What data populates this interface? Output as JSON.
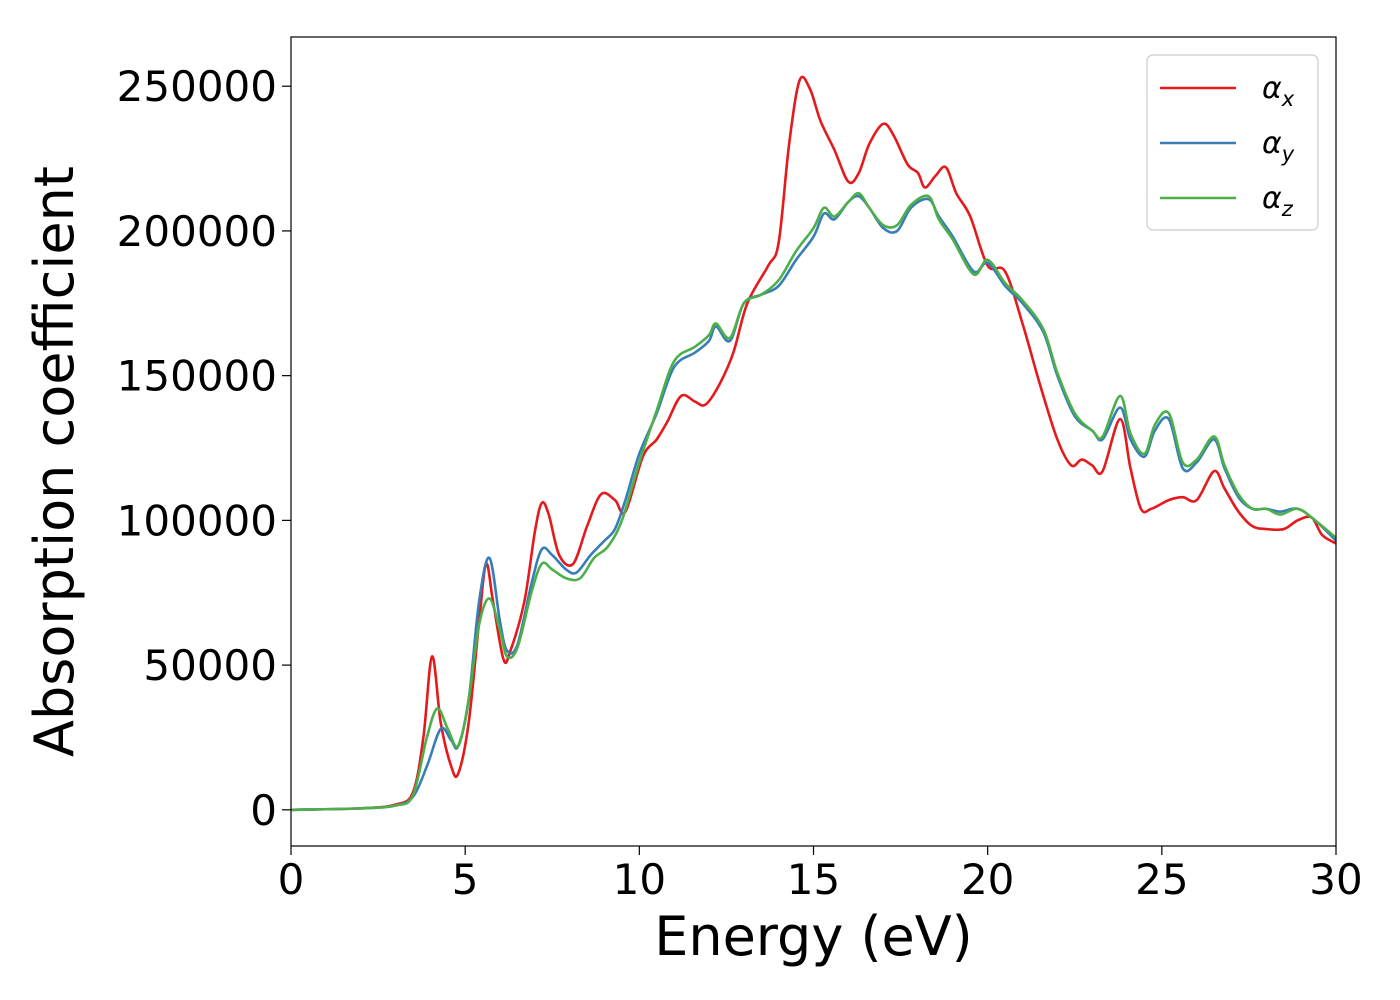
{
  "chart_data": {
    "type": "line",
    "title": "",
    "xlabel": "Energy (eV)",
    "ylabel": "Absorption coefficient",
    "xlim": [
      0,
      30
    ],
    "ylim": [
      -12500,
      267000
    ],
    "xticks": [
      0,
      5,
      10,
      15,
      20,
      25,
      30
    ],
    "xtick_labels": [
      "0",
      "5",
      "10",
      "15",
      "20",
      "25",
      "30"
    ],
    "yticks": [
      0,
      50000,
      100000,
      150000,
      200000,
      250000
    ],
    "ytick_labels": [
      "0",
      "50000",
      "100000",
      "150000",
      "200000",
      "250000"
    ],
    "grid": false,
    "legend_position": "top-right",
    "series": [
      {
        "name": "αx",
        "legend_symbol": "α",
        "legend_subscript": "x",
        "color": "#e41a1c",
        "points": [
          [
            0,
            0
          ],
          [
            2,
            500
          ],
          [
            3,
            1800
          ],
          [
            3.5,
            6000
          ],
          [
            3.8,
            25000
          ],
          [
            4.05,
            53000
          ],
          [
            4.3,
            30000
          ],
          [
            4.6,
            15000
          ],
          [
            4.8,
            12500
          ],
          [
            5.1,
            30000
          ],
          [
            5.4,
            65000
          ],
          [
            5.6,
            85000
          ],
          [
            5.8,
            72000
          ],
          [
            6.1,
            52000
          ],
          [
            6.3,
            55000
          ],
          [
            6.7,
            72000
          ],
          [
            7.0,
            96000
          ],
          [
            7.2,
            106000
          ],
          [
            7.4,
            102000
          ],
          [
            7.7,
            88000
          ],
          [
            8.1,
            85000
          ],
          [
            8.5,
            98000
          ],
          [
            8.9,
            109000
          ],
          [
            9.3,
            107000
          ],
          [
            9.6,
            103000
          ],
          [
            10.1,
            122000
          ],
          [
            10.5,
            128000
          ],
          [
            10.8,
            134000
          ],
          [
            11.2,
            143000
          ],
          [
            11.6,
            141000
          ],
          [
            11.9,
            140000
          ],
          [
            12.3,
            147000
          ],
          [
            12.7,
            158000
          ],
          [
            13.1,
            175000
          ],
          [
            13.7,
            188000
          ],
          [
            14.0,
            196000
          ],
          [
            14.3,
            230000
          ],
          [
            14.6,
            252000
          ],
          [
            14.9,
            249000
          ],
          [
            15.2,
            238000
          ],
          [
            15.6,
            228000
          ],
          [
            16.0,
            217000
          ],
          [
            16.3,
            220000
          ],
          [
            16.6,
            230000
          ],
          [
            17.0,
            237000
          ],
          [
            17.3,
            233000
          ],
          [
            17.7,
            223000
          ],
          [
            18.0,
            220000
          ],
          [
            18.2,
            215000
          ],
          [
            18.5,
            219000
          ],
          [
            18.8,
            222000
          ],
          [
            19.1,
            213000
          ],
          [
            19.5,
            205000
          ],
          [
            20.0,
            188000
          ],
          [
            20.5,
            186000
          ],
          [
            21.0,
            168000
          ],
          [
            21.5,
            147000
          ],
          [
            22.0,
            128000
          ],
          [
            22.4,
            119000
          ],
          [
            22.7,
            121000
          ],
          [
            23.0,
            119000
          ],
          [
            23.3,
            117000
          ],
          [
            23.8,
            135000
          ],
          [
            24.1,
            118000
          ],
          [
            24.4,
            104000
          ],
          [
            24.7,
            104000
          ],
          [
            25.2,
            107000
          ],
          [
            25.6,
            108000
          ],
          [
            26.0,
            107000
          ],
          [
            26.5,
            117000
          ],
          [
            26.8,
            111000
          ],
          [
            27.2,
            103000
          ],
          [
            27.6,
            98000
          ],
          [
            28.0,
            97000
          ],
          [
            28.5,
            97000
          ],
          [
            28.9,
            100000
          ],
          [
            29.3,
            101000
          ],
          [
            29.6,
            95000
          ],
          [
            30.0,
            92000
          ]
        ]
      },
      {
        "name": "αy",
        "legend_symbol": "α",
        "legend_subscript": "y",
        "color": "#377eb8",
        "points": [
          [
            0,
            0
          ],
          [
            2,
            500
          ],
          [
            3,
            1500
          ],
          [
            3.5,
            4500
          ],
          [
            3.9,
            15000
          ],
          [
            4.3,
            28000
          ],
          [
            4.6,
            24000
          ],
          [
            4.8,
            22000
          ],
          [
            5.1,
            38000
          ],
          [
            5.4,
            72000
          ],
          [
            5.7,
            87000
          ],
          [
            6.0,
            65000
          ],
          [
            6.2,
            55000
          ],
          [
            6.5,
            57000
          ],
          [
            6.9,
            78000
          ],
          [
            7.2,
            90000
          ],
          [
            7.5,
            88000
          ],
          [
            7.9,
            83000
          ],
          [
            8.2,
            82000
          ],
          [
            8.6,
            88000
          ],
          [
            9.0,
            93000
          ],
          [
            9.3,
            97000
          ],
          [
            9.6,
            107000
          ],
          [
            10.0,
            123000
          ],
          [
            10.5,
            137000
          ],
          [
            11.0,
            153000
          ],
          [
            11.6,
            158000
          ],
          [
            12.0,
            162000
          ],
          [
            12.2,
            167000
          ],
          [
            12.6,
            162000
          ],
          [
            13.0,
            175000
          ],
          [
            13.5,
            178000
          ],
          [
            14.0,
            181000
          ],
          [
            14.5,
            190000
          ],
          [
            15.0,
            198000
          ],
          [
            15.3,
            206000
          ],
          [
            15.6,
            204000
          ],
          [
            16.0,
            210000
          ],
          [
            16.3,
            212000
          ],
          [
            16.6,
            208000
          ],
          [
            17.0,
            201000
          ],
          [
            17.4,
            200000
          ],
          [
            17.8,
            208000
          ],
          [
            18.3,
            211000
          ],
          [
            18.6,
            205000
          ],
          [
            19.0,
            198000
          ],
          [
            19.6,
            186000
          ],
          [
            20.0,
            189000
          ],
          [
            20.5,
            181000
          ],
          [
            21.0,
            175000
          ],
          [
            21.6,
            165000
          ],
          [
            22.0,
            150000
          ],
          [
            22.5,
            136000
          ],
          [
            23.0,
            131000
          ],
          [
            23.3,
            128000
          ],
          [
            23.8,
            139000
          ],
          [
            24.1,
            128000
          ],
          [
            24.5,
            122000
          ],
          [
            24.8,
            131000
          ],
          [
            25.2,
            135000
          ],
          [
            25.6,
            118000
          ],
          [
            26.0,
            120000
          ],
          [
            26.5,
            128000
          ],
          [
            26.8,
            118000
          ],
          [
            27.2,
            108000
          ],
          [
            27.6,
            104000
          ],
          [
            28.0,
            104000
          ],
          [
            28.4,
            103000
          ],
          [
            28.9,
            104000
          ],
          [
            29.4,
            100000
          ],
          [
            30.0,
            93000
          ]
        ]
      },
      {
        "name": "αz",
        "legend_symbol": "α",
        "legend_subscript": "z",
        "color": "#4daf4a",
        "points": [
          [
            0,
            0
          ],
          [
            2,
            500
          ],
          [
            3,
            1500
          ],
          [
            3.5,
            5000
          ],
          [
            3.9,
            25000
          ],
          [
            4.2,
            35000
          ],
          [
            4.5,
            28000
          ],
          [
            4.8,
            22000
          ],
          [
            5.1,
            38000
          ],
          [
            5.4,
            64000
          ],
          [
            5.7,
            73000
          ],
          [
            6.0,
            62000
          ],
          [
            6.2,
            53000
          ],
          [
            6.5,
            56000
          ],
          [
            6.9,
            75000
          ],
          [
            7.2,
            85000
          ],
          [
            7.5,
            83000
          ],
          [
            7.9,
            80000
          ],
          [
            8.3,
            80000
          ],
          [
            8.7,
            87000
          ],
          [
            9.1,
            91000
          ],
          [
            9.5,
            100000
          ],
          [
            10.0,
            120000
          ],
          [
            10.5,
            138000
          ],
          [
            11.0,
            155000
          ],
          [
            11.6,
            160000
          ],
          [
            12.0,
            164000
          ],
          [
            12.2,
            168000
          ],
          [
            12.6,
            163000
          ],
          [
            13.0,
            175000
          ],
          [
            13.5,
            178000
          ],
          [
            14.0,
            183000
          ],
          [
            14.5,
            193000
          ],
          [
            15.0,
            201000
          ],
          [
            15.3,
            208000
          ],
          [
            15.6,
            205000
          ],
          [
            16.0,
            210000
          ],
          [
            16.3,
            213000
          ],
          [
            16.6,
            208000
          ],
          [
            17.0,
            202000
          ],
          [
            17.4,
            202000
          ],
          [
            17.8,
            209000
          ],
          [
            18.3,
            212000
          ],
          [
            18.6,
            204000
          ],
          [
            19.0,
            197000
          ],
          [
            19.6,
            185000
          ],
          [
            20.0,
            190000
          ],
          [
            20.5,
            182000
          ],
          [
            21.0,
            176000
          ],
          [
            21.6,
            166000
          ],
          [
            22.0,
            151000
          ],
          [
            22.5,
            137000
          ],
          [
            23.0,
            131000
          ],
          [
            23.3,
            129000
          ],
          [
            23.8,
            143000
          ],
          [
            24.1,
            130000
          ],
          [
            24.5,
            123000
          ],
          [
            24.8,
            133000
          ],
          [
            25.2,
            137000
          ],
          [
            25.6,
            120000
          ],
          [
            26.0,
            121000
          ],
          [
            26.5,
            129000
          ],
          [
            26.8,
            119000
          ],
          [
            27.2,
            109000
          ],
          [
            27.6,
            104000
          ],
          [
            28.0,
            104000
          ],
          [
            28.4,
            102000
          ],
          [
            28.9,
            104000
          ],
          [
            29.4,
            100000
          ],
          [
            30.0,
            94000
          ]
        ]
      }
    ]
  }
}
